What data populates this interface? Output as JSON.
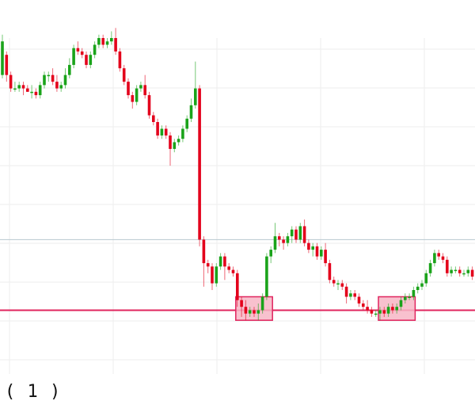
{
  "caption": "( 1 )",
  "colors": {
    "up": "#1aa31a",
    "down": "#e3001b",
    "support_line": "#e0245e",
    "zone_fill": "#f7b6c6",
    "zone_stroke": "#e0245e",
    "reference_line": "#b7c7cf",
    "grid": "#eeeeee"
  },
  "chart_data": {
    "type": "candlestick",
    "title": "",
    "xlabel": "",
    "ylabel": "",
    "grid": true,
    "ylim": [
      -9,
      91
    ],
    "support_level": 10,
    "reference_level": 31,
    "highlight_zones": [
      {
        "x_from": 56,
        "x_to": 64,
        "y_from": 7,
        "y_to": 14
      },
      {
        "x_from": 90,
        "x_to": 98,
        "y_from": 7,
        "y_to": 14
      }
    ],
    "candles": [
      [
        0,
        80,
        90,
        92,
        79
      ],
      [
        1,
        86,
        80,
        87,
        78
      ],
      [
        2,
        80,
        76,
        81,
        75
      ],
      [
        3,
        76,
        76,
        78,
        75
      ],
      [
        4,
        76,
        77,
        78,
        75
      ],
      [
        5,
        77,
        76,
        78,
        74
      ],
      [
        6,
        76,
        75,
        77,
        75
      ],
      [
        7,
        75,
        75,
        77,
        73
      ],
      [
        8,
        75,
        74,
        76,
        73
      ],
      [
        9,
        74,
        77,
        78,
        73
      ],
      [
        10,
        77,
        80,
        81,
        76
      ],
      [
        11,
        80,
        80,
        81,
        78
      ],
      [
        12,
        80,
        78,
        82,
        77
      ],
      [
        13,
        78,
        76,
        80,
        75
      ],
      [
        14,
        76,
        77,
        78,
        75
      ],
      [
        15,
        77,
        80,
        82,
        76
      ],
      [
        16,
        80,
        83,
        85,
        79
      ],
      [
        17,
        83,
        88,
        89,
        82
      ],
      [
        18,
        88,
        87,
        90,
        86
      ],
      [
        19,
        87,
        86,
        88,
        85
      ],
      [
        20,
        86,
        83,
        87,
        82
      ],
      [
        21,
        83,
        86,
        87,
        82
      ],
      [
        22,
        86,
        89,
        90,
        85
      ],
      [
        23,
        89,
        91,
        92,
        88
      ],
      [
        24,
        91,
        89,
        92,
        88
      ],
      [
        25,
        89,
        90,
        91,
        88
      ],
      [
        26,
        90,
        91,
        93,
        89
      ],
      [
        27,
        91,
        87,
        94,
        86
      ],
      [
        28,
        87,
        82,
        88,
        81
      ],
      [
        29,
        82,
        78,
        83,
        77
      ],
      [
        30,
        78,
        74,
        79,
        73
      ],
      [
        31,
        74,
        72,
        75,
        70
      ],
      [
        32,
        72,
        76,
        77,
        71
      ],
      [
        33,
        76,
        77,
        78,
        75
      ],
      [
        34,
        77,
        74,
        80,
        73
      ],
      [
        35,
        74,
        68,
        75,
        67
      ],
      [
        36,
        68,
        66,
        69,
        65
      ],
      [
        37,
        66,
        62,
        67,
        61
      ],
      [
        38,
        62,
        64,
        65,
        61
      ],
      [
        39,
        64,
        62,
        65,
        61
      ],
      [
        40,
        62,
        58,
        63,
        53
      ],
      [
        41,
        58,
        60,
        61,
        57
      ],
      [
        42,
        60,
        61,
        62,
        59
      ],
      [
        43,
        61,
        64,
        65,
        60
      ],
      [
        44,
        64,
        67,
        68,
        63
      ],
      [
        45,
        67,
        71,
        73,
        66
      ],
      [
        46,
        71,
        76,
        84,
        70
      ],
      [
        47,
        76,
        31,
        77,
        29
      ],
      [
        48,
        31,
        24,
        32,
        17
      ],
      [
        49,
        24,
        23,
        25,
        21
      ],
      [
        50,
        23,
        18,
        24,
        16
      ],
      [
        51,
        18,
        23,
        24,
        17
      ],
      [
        52,
        23,
        26,
        27,
        22
      ],
      [
        53,
        26,
        23,
        27,
        19
      ],
      [
        54,
        23,
        22,
        24,
        21
      ],
      [
        55,
        22,
        21,
        23,
        20
      ],
      [
        56,
        21,
        13,
        22,
        11
      ],
      [
        57,
        13,
        11,
        14,
        8
      ],
      [
        58,
        11,
        9,
        13,
        7
      ],
      [
        59,
        9,
        10,
        11,
        8
      ],
      [
        60,
        10,
        9,
        11,
        8
      ],
      [
        61,
        9,
        10,
        12,
        7
      ],
      [
        62,
        10,
        14,
        15,
        9
      ],
      [
        63,
        14,
        26,
        27,
        13
      ],
      [
        64,
        26,
        28,
        29,
        24
      ],
      [
        65,
        28,
        32,
        36,
        27
      ],
      [
        66,
        32,
        31,
        33,
        29
      ],
      [
        67,
        31,
        30,
        32,
        28
      ],
      [
        68,
        30,
        32,
        33,
        29
      ],
      [
        69,
        32,
        34,
        35,
        30
      ],
      [
        70,
        34,
        31,
        35,
        30
      ],
      [
        71,
        31,
        35,
        36,
        30
      ],
      [
        72,
        35,
        30,
        37,
        29
      ],
      [
        73,
        30,
        28,
        31,
        27
      ],
      [
        74,
        28,
        29,
        30,
        26
      ],
      [
        75,
        29,
        26,
        30,
        25
      ],
      [
        76,
        26,
        28,
        29,
        25
      ],
      [
        77,
        28,
        24,
        30,
        23
      ],
      [
        78,
        24,
        19,
        25,
        18
      ],
      [
        79,
        19,
        18,
        20,
        17
      ],
      [
        80,
        18,
        18,
        19,
        16
      ],
      [
        81,
        18,
        17,
        19,
        16
      ],
      [
        82,
        17,
        14,
        18,
        12
      ],
      [
        83,
        14,
        15,
        16,
        13
      ],
      [
        84,
        15,
        14,
        16,
        13
      ],
      [
        85,
        14,
        12,
        15,
        11
      ],
      [
        86,
        12,
        11,
        13,
        10
      ],
      [
        87,
        11,
        10,
        13,
        9
      ],
      [
        88,
        10,
        9,
        11,
        8
      ],
      [
        89,
        9,
        9,
        10,
        8
      ],
      [
        90,
        9,
        10,
        11,
        7
      ],
      [
        91,
        10,
        9,
        11,
        8
      ],
      [
        92,
        9,
        11,
        12,
        8
      ],
      [
        93,
        11,
        10,
        12,
        9
      ],
      [
        94,
        10,
        11,
        12,
        9
      ],
      [
        95,
        11,
        13,
        14,
        10
      ],
      [
        96,
        13,
        14,
        15,
        12
      ],
      [
        97,
        14,
        14,
        15,
        13
      ],
      [
        98,
        14,
        16,
        17,
        13
      ],
      [
        99,
        16,
        17,
        18,
        15
      ],
      [
        100,
        17,
        18,
        19,
        16
      ],
      [
        101,
        18,
        21,
        22,
        17
      ],
      [
        102,
        21,
        24,
        25,
        20
      ],
      [
        103,
        24,
        27,
        28,
        23
      ],
      [
        104,
        27,
        26,
        28,
        25
      ],
      [
        105,
        26,
        25,
        27,
        24
      ],
      [
        106,
        25,
        21,
        26,
        20
      ],
      [
        107,
        21,
        22,
        23,
        20
      ],
      [
        108,
        22,
        22,
        23,
        21
      ],
      [
        109,
        22,
        21,
        23,
        20
      ],
      [
        110,
        21,
        21,
        22,
        20
      ],
      [
        111,
        21,
        22,
        23,
        20
      ],
      [
        112,
        22,
        20,
        23,
        19
      ],
      [
        113,
        20,
        16,
        21,
        15
      ]
    ]
  }
}
